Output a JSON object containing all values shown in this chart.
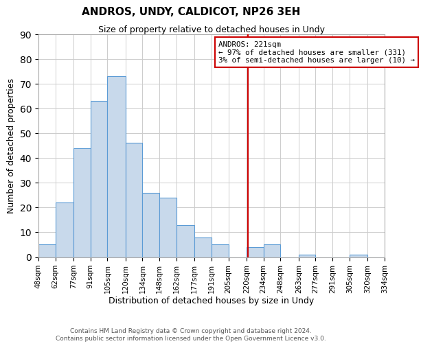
{
  "title": "ANDROS, UNDY, CALDICOT, NP26 3EH",
  "subtitle": "Size of property relative to detached houses in Undy",
  "xlabel": "Distribution of detached houses by size in Undy",
  "ylabel": "Number of detached properties",
  "bar_edges": [
    48,
    62,
    77,
    91,
    105,
    120,
    134,
    148,
    162,
    177,
    191,
    205,
    220,
    234,
    248,
    263,
    277,
    291,
    305,
    320,
    334
  ],
  "bar_heights": [
    5,
    22,
    44,
    63,
    73,
    46,
    26,
    24,
    13,
    8,
    5,
    0,
    4,
    5,
    0,
    1,
    0,
    0,
    1,
    0
  ],
  "bar_color": "#c8d9eb",
  "bar_edge_color": "#5b9bd5",
  "tick_labels": [
    "48sqm",
    "62sqm",
    "77sqm",
    "91sqm",
    "105sqm",
    "120sqm",
    "134sqm",
    "148sqm",
    "162sqm",
    "177sqm",
    "191sqm",
    "205sqm",
    "220sqm",
    "234sqm",
    "248sqm",
    "263sqm",
    "277sqm",
    "291sqm",
    "305sqm",
    "320sqm",
    "334sqm"
  ],
  "ylim": [
    0,
    90
  ],
  "yticks": [
    0,
    10,
    20,
    30,
    40,
    50,
    60,
    70,
    80,
    90
  ],
  "vline_x": 221,
  "vline_color": "#cc0000",
  "annotation_title": "ANDROS: 221sqm",
  "annotation_line1": "← 97% of detached houses are smaller (331)",
  "annotation_line2": "3% of semi-detached houses are larger (10) →",
  "annotation_box_color": "#cc0000",
  "footer1": "Contains HM Land Registry data © Crown copyright and database right 2024.",
  "footer2": "Contains public sector information licensed under the Open Government Licence v3.0.",
  "background_color": "#ffffff",
  "grid_color": "#cccccc",
  "figsize": [
    6.0,
    5.0
  ],
  "dpi": 100
}
